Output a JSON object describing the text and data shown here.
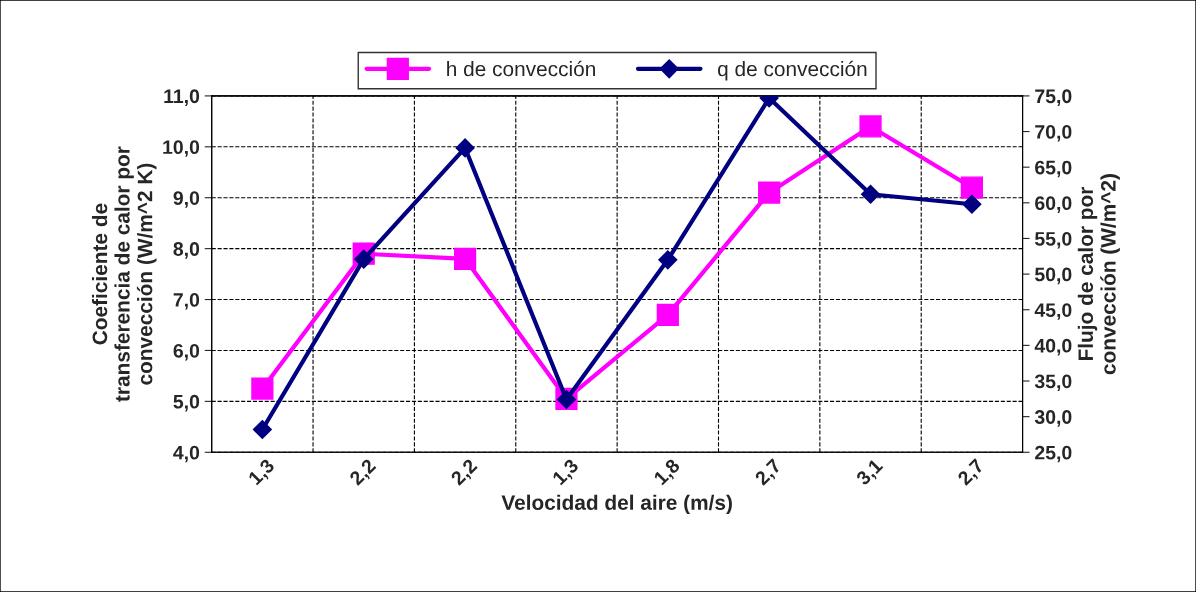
{
  "chart_data": {
    "type": "line",
    "xlabel": "Velocidad del aire (m/s)",
    "ylabel": "Coeficiente de\ntransferencia de calor por\nconvección (W/m^2 K)",
    "y2label": "Flujo de calor por\nconvección (W/m^2)",
    "categories": [
      "1,3",
      "2,2",
      "2,2",
      "1,3",
      "1,8",
      "2,7",
      "3,1",
      "2,7"
    ],
    "series": [
      {
        "name": "h de convección",
        "color": "#ff00ff",
        "marker": "square",
        "values": [
          5.25,
          7.9,
          7.8,
          5.05,
          6.7,
          9.1,
          10.4,
          9.2
        ]
      },
      {
        "name": "q de convección",
        "color": "#000080",
        "marker": "diamond",
        "axis": "y2",
        "values": [
          28.2,
          52.1,
          67.7,
          32.4,
          52.0,
          74.7,
          61.2,
          59.8
        ]
      }
    ],
    "ylim": [
      4,
      11
    ],
    "yticks": [
      {
        "value": 4,
        "label": "4,0"
      },
      {
        "value": 5,
        "label": "5,0"
      },
      {
        "value": 6,
        "label": "6,0"
      },
      {
        "value": 7,
        "label": "7,0"
      },
      {
        "value": 8,
        "label": "8,0"
      },
      {
        "value": 9,
        "label": "9,0"
      },
      {
        "value": 10,
        "label": "10,0"
      },
      {
        "value": 11,
        "label": "11,0"
      }
    ],
    "y2lim": [
      25,
      75
    ],
    "y2ticks": [
      {
        "value": 25,
        "label": "25,0"
      },
      {
        "value": 30,
        "label": "30,0"
      },
      {
        "value": 35,
        "label": "35,0"
      },
      {
        "value": 40,
        "label": "40,0"
      },
      {
        "value": 45,
        "label": "45,0"
      },
      {
        "value": 50,
        "label": "50,0"
      },
      {
        "value": 55,
        "label": "55,0"
      },
      {
        "value": 60,
        "label": "60,0"
      },
      {
        "value": 65,
        "label": "65,0"
      },
      {
        "value": 70,
        "label": "70,0"
      },
      {
        "value": 75,
        "label": "75,0"
      }
    ],
    "grid": true,
    "legend": "top",
    "line_style": "solid"
  }
}
